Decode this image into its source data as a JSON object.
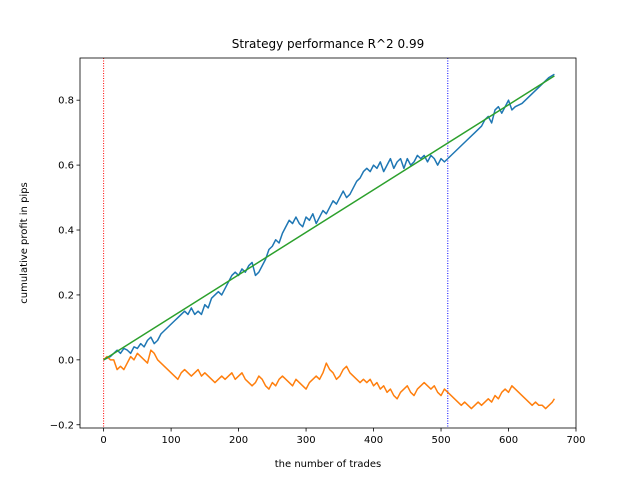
{
  "chart_data": {
    "type": "line",
    "title": "Strategy performance R^2 0.99",
    "xlabel": "the number of trades",
    "ylabel": "cumulative profit in pips",
    "xlim": [
      -35,
      700
    ],
    "ylim": [
      -0.21,
      0.93
    ],
    "xticks": [
      0,
      100,
      200,
      300,
      400,
      500,
      600,
      700
    ],
    "yticks": [
      -0.2,
      0.0,
      0.2,
      0.4,
      0.6,
      0.8
    ],
    "grid": false,
    "vlines": [
      {
        "x": 0,
        "color": "#ff0000"
      },
      {
        "x": 510,
        "color": "#0000ff"
      }
    ],
    "series": [
      {
        "color": "#1f77b4",
        "x": [
          0,
          10,
          20,
          25,
          30,
          35,
          40,
          45,
          50,
          55,
          60,
          65,
          70,
          75,
          80,
          85,
          90,
          95,
          100,
          105,
          110,
          115,
          120,
          125,
          130,
          135,
          140,
          145,
          150,
          155,
          160,
          165,
          170,
          175,
          180,
          185,
          190,
          195,
          200,
          205,
          210,
          215,
          220,
          225,
          230,
          235,
          240,
          245,
          250,
          255,
          260,
          265,
          270,
          275,
          280,
          285,
          290,
          295,
          300,
          305,
          310,
          315,
          320,
          325,
          330,
          335,
          340,
          345,
          350,
          355,
          360,
          365,
          370,
          375,
          380,
          385,
          390,
          395,
          400,
          405,
          410,
          415,
          420,
          425,
          430,
          435,
          440,
          445,
          450,
          455,
          460,
          465,
          470,
          475,
          480,
          485,
          490,
          495,
          500,
          505,
          510,
          520,
          530,
          540,
          550,
          560,
          565,
          570,
          575,
          580,
          585,
          590,
          595,
          600,
          605,
          610,
          620,
          630,
          640,
          650,
          660,
          668
        ],
        "y": [
          0.0,
          0.01,
          0.03,
          0.02,
          0.035,
          0.03,
          0.02,
          0.04,
          0.035,
          0.05,
          0.04,
          0.06,
          0.07,
          0.05,
          0.06,
          0.08,
          0.09,
          0.1,
          0.11,
          0.12,
          0.13,
          0.14,
          0.15,
          0.14,
          0.16,
          0.14,
          0.15,
          0.14,
          0.17,
          0.16,
          0.19,
          0.2,
          0.21,
          0.2,
          0.22,
          0.24,
          0.26,
          0.27,
          0.26,
          0.28,
          0.27,
          0.29,
          0.3,
          0.26,
          0.27,
          0.29,
          0.31,
          0.34,
          0.35,
          0.37,
          0.36,
          0.39,
          0.41,
          0.43,
          0.42,
          0.44,
          0.42,
          0.41,
          0.44,
          0.43,
          0.45,
          0.42,
          0.44,
          0.46,
          0.45,
          0.47,
          0.49,
          0.48,
          0.5,
          0.52,
          0.5,
          0.51,
          0.53,
          0.55,
          0.56,
          0.58,
          0.59,
          0.58,
          0.6,
          0.59,
          0.61,
          0.58,
          0.6,
          0.62,
          0.59,
          0.61,
          0.62,
          0.59,
          0.62,
          0.6,
          0.61,
          0.63,
          0.62,
          0.63,
          0.61,
          0.63,
          0.62,
          0.6,
          0.62,
          0.61,
          0.62,
          0.64,
          0.66,
          0.68,
          0.7,
          0.72,
          0.74,
          0.75,
          0.73,
          0.77,
          0.78,
          0.76,
          0.78,
          0.8,
          0.77,
          0.78,
          0.79,
          0.81,
          0.83,
          0.85,
          0.87,
          0.88
        ]
      },
      {
        "color": "#ff7f0e",
        "x": [
          0,
          5,
          10,
          15,
          20,
          25,
          30,
          35,
          40,
          45,
          50,
          55,
          60,
          65,
          70,
          75,
          80,
          85,
          90,
          95,
          100,
          105,
          110,
          115,
          120,
          125,
          130,
          135,
          140,
          145,
          150,
          155,
          160,
          165,
          170,
          175,
          180,
          185,
          190,
          195,
          200,
          205,
          210,
          215,
          220,
          225,
          230,
          235,
          240,
          245,
          250,
          255,
          260,
          265,
          270,
          275,
          280,
          285,
          290,
          295,
          300,
          305,
          310,
          315,
          320,
          325,
          330,
          335,
          340,
          345,
          350,
          355,
          360,
          365,
          370,
          375,
          380,
          385,
          390,
          395,
          400,
          405,
          410,
          415,
          420,
          425,
          430,
          435,
          440,
          445,
          450,
          455,
          460,
          465,
          470,
          475,
          480,
          485,
          490,
          495,
          500,
          505,
          510,
          515,
          520,
          525,
          530,
          535,
          540,
          545,
          550,
          555,
          560,
          565,
          570,
          575,
          580,
          585,
          590,
          595,
          600,
          605,
          610,
          615,
          620,
          625,
          630,
          635,
          640,
          645,
          650,
          655,
          660,
          665,
          668
        ],
        "y": [
          0.0,
          0.01,
          0.0,
          0.0,
          -0.03,
          -0.02,
          -0.03,
          -0.01,
          0.01,
          0.0,
          0.02,
          0.01,
          0.0,
          -0.01,
          0.03,
          0.02,
          0.0,
          -0.01,
          -0.02,
          -0.03,
          -0.04,
          -0.05,
          -0.06,
          -0.04,
          -0.03,
          -0.04,
          -0.05,
          -0.04,
          -0.03,
          -0.05,
          -0.04,
          -0.05,
          -0.06,
          -0.07,
          -0.06,
          -0.05,
          -0.06,
          -0.05,
          -0.04,
          -0.06,
          -0.05,
          -0.04,
          -0.06,
          -0.07,
          -0.08,
          -0.07,
          -0.05,
          -0.06,
          -0.08,
          -0.09,
          -0.07,
          -0.08,
          -0.06,
          -0.05,
          -0.06,
          -0.07,
          -0.08,
          -0.06,
          -0.07,
          -0.08,
          -0.09,
          -0.07,
          -0.06,
          -0.05,
          -0.06,
          -0.04,
          -0.01,
          -0.03,
          -0.04,
          -0.06,
          -0.05,
          -0.03,
          -0.02,
          -0.04,
          -0.05,
          -0.06,
          -0.07,
          -0.06,
          -0.07,
          -0.06,
          -0.08,
          -0.07,
          -0.09,
          -0.08,
          -0.1,
          -0.09,
          -0.11,
          -0.12,
          -0.1,
          -0.09,
          -0.08,
          -0.1,
          -0.11,
          -0.09,
          -0.08,
          -0.07,
          -0.08,
          -0.09,
          -0.08,
          -0.1,
          -0.11,
          -0.09,
          -0.1,
          -0.11,
          -0.12,
          -0.13,
          -0.14,
          -0.13,
          -0.14,
          -0.15,
          -0.14,
          -0.13,
          -0.14,
          -0.13,
          -0.12,
          -0.13,
          -0.11,
          -0.12,
          -0.1,
          -0.09,
          -0.1,
          -0.08,
          -0.09,
          -0.1,
          -0.11,
          -0.12,
          -0.13,
          -0.14,
          -0.13,
          -0.14,
          -0.14,
          -0.15,
          -0.14,
          -0.13,
          -0.12
        ]
      },
      {
        "color": "#2ca02c",
        "x": [
          0,
          668
        ],
        "y": [
          0.0,
          0.875
        ]
      }
    ]
  }
}
